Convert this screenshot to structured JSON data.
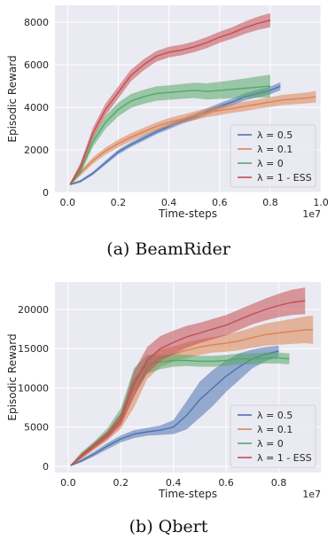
{
  "chart_data": [
    {
      "type": "line",
      "caption": "(a) BeamRider",
      "xlabel": "Time-steps",
      "ylabel": "Episodic Reward",
      "x_scale_label": "1e7",
      "xlim": [
        -0.05,
        1.0
      ],
      "ylim": [
        0,
        8800
      ],
      "xticks": [
        0.0,
        0.2,
        0.4,
        0.6,
        0.8,
        1.0
      ],
      "xtick_labels": [
        "0.0",
        "0.2",
        "0.4",
        "0.6",
        "0.8",
        "1.0"
      ],
      "yticks": [
        0,
        2000,
        4000,
        6000,
        8000
      ],
      "ytick_labels": [
        "0",
        "2000",
        "4000",
        "6000",
        "8000"
      ],
      "grid": true,
      "legend_position": "lower-right",
      "series": [
        {
          "name": "λ = 0.5",
          "color": "#4c72b0",
          "x": [
            0.01,
            0.05,
            0.1,
            0.15,
            0.2,
            0.25,
            0.3,
            0.35,
            0.4,
            0.45,
            0.5,
            0.55,
            0.6,
            0.65,
            0.7,
            0.75,
            0.8,
            0.84
          ],
          "y": [
            380,
            520,
            900,
            1400,
            1900,
            2250,
            2550,
            2850,
            3100,
            3350,
            3550,
            3800,
            4050,
            4250,
            4500,
            4650,
            4800,
            5000
          ],
          "band": [
            50,
            60,
            80,
            100,
            110,
            110,
            120,
            120,
            130,
            130,
            140,
            150,
            150,
            160,
            170,
            170,
            180,
            190
          ]
        },
        {
          "name": "λ = 0.1",
          "color": "#dd8452",
          "x": [
            0.01,
            0.05,
            0.1,
            0.15,
            0.2,
            0.25,
            0.3,
            0.35,
            0.4,
            0.45,
            0.5,
            0.55,
            0.6,
            0.65,
            0.7,
            0.75,
            0.8,
            0.85,
            0.9,
            0.95,
            0.98
          ],
          "y": [
            380,
            900,
            1500,
            1950,
            2300,
            2600,
            2850,
            3100,
            3300,
            3450,
            3600,
            3750,
            3850,
            3950,
            4050,
            4150,
            4250,
            4350,
            4400,
            4450,
            4500
          ],
          "band": [
            60,
            120,
            150,
            170,
            180,
            180,
            190,
            190,
            200,
            200,
            200,
            210,
            210,
            210,
            220,
            220,
            230,
            240,
            250,
            260,
            270
          ]
        },
        {
          "name": "λ = 0",
          "color": "#55a868",
          "x": [
            0.01,
            0.05,
            0.1,
            0.15,
            0.2,
            0.25,
            0.3,
            0.35,
            0.4,
            0.45,
            0.5,
            0.55,
            0.6,
            0.65,
            0.7,
            0.75,
            0.8
          ],
          "y": [
            380,
            1000,
            2400,
            3300,
            3900,
            4300,
            4500,
            4650,
            4700,
            4750,
            4800,
            4750,
            4800,
            4850,
            4900,
            4950,
            5000
          ],
          "band": [
            60,
            150,
            250,
            300,
            320,
            330,
            330,
            340,
            340,
            350,
            360,
            380,
            400,
            430,
            460,
            500,
            540
          ]
        },
        {
          "name": "λ = 1 - ESS",
          "color": "#c44e52",
          "x": [
            0.01,
            0.05,
            0.1,
            0.15,
            0.2,
            0.25,
            0.3,
            0.35,
            0.4,
            0.45,
            0.5,
            0.55,
            0.6,
            0.65,
            0.7,
            0.75,
            0.8
          ],
          "y": [
            380,
            1200,
            2800,
            3900,
            4700,
            5500,
            6000,
            6400,
            6600,
            6700,
            6850,
            7050,
            7300,
            7500,
            7750,
            7950,
            8100
          ],
          "band": [
            60,
            180,
            250,
            280,
            280,
            270,
            260,
            250,
            250,
            250,
            250,
            260,
            260,
            270,
            290,
            310,
            330
          ]
        }
      ]
    },
    {
      "type": "line",
      "caption": "(b) Qbert",
      "xlabel": "Time-steps",
      "ylabel": "Episodic Reward",
      "x_scale_label": "1e7",
      "xlim": [
        -0.05,
        0.96
      ],
      "ylim": [
        -800,
        23500
      ],
      "xticks": [
        0.0,
        0.2,
        0.4,
        0.6,
        0.8
      ],
      "xtick_labels": [
        "0.0",
        "0.2",
        "0.4",
        "0.6",
        "0.8"
      ],
      "yticks": [
        0,
        5000,
        10000,
        15000,
        20000
      ],
      "ytick_labels": [
        "0",
        "5000",
        "10000",
        "15000",
        "20000"
      ],
      "grid": true,
      "legend_position": "lower-right",
      "series": [
        {
          "name": "λ = 0.5",
          "color": "#4c72b0",
          "x": [
            0.01,
            0.05,
            0.1,
            0.15,
            0.2,
            0.25,
            0.3,
            0.35,
            0.4,
            0.45,
            0.5,
            0.55,
            0.6,
            0.65,
            0.7,
            0.75,
            0.8
          ],
          "y": [
            100,
            700,
            1600,
            2600,
            3500,
            4100,
            4400,
            4600,
            5000,
            6500,
            8500,
            10000,
            11500,
            12700,
            13700,
            14300,
            14700
          ],
          "band": [
            80,
            200,
            300,
            400,
            450,
            500,
            500,
            600,
            900,
            1800,
            2300,
            2300,
            2000,
            1700,
            1200,
            900,
            700
          ]
        },
        {
          "name": "λ = 0.1",
          "color": "#dd8452",
          "x": [
            0.01,
            0.05,
            0.1,
            0.15,
            0.2,
            0.25,
            0.3,
            0.35,
            0.4,
            0.45,
            0.5,
            0.55,
            0.6,
            0.65,
            0.7,
            0.75,
            0.8,
            0.85,
            0.9,
            0.93
          ],
          "y": [
            100,
            1200,
            2500,
            3800,
            5500,
            9000,
            12500,
            13800,
            14300,
            14800,
            15200,
            15500,
            15700,
            16000,
            16400,
            16800,
            17000,
            17200,
            17400,
            17400
          ],
          "band": [
            80,
            300,
            400,
            500,
            700,
            1500,
            1400,
            1100,
            1000,
            1000,
            1000,
            1000,
            1100,
            1200,
            1300,
            1400,
            1500,
            1600,
            1700,
            1800
          ]
        },
        {
          "name": "λ = 0",
          "color": "#55a868",
          "x": [
            0.01,
            0.05,
            0.1,
            0.15,
            0.2,
            0.25,
            0.3,
            0.35,
            0.4,
            0.45,
            0.5,
            0.55,
            0.6,
            0.65,
            0.7,
            0.75,
            0.8,
            0.84
          ],
          "y": [
            100,
            1500,
            2800,
            4300,
            6500,
            11000,
            13000,
            13300,
            13500,
            13500,
            13400,
            13400,
            13500,
            13700,
            13700,
            13800,
            13800,
            13700
          ],
          "band": [
            80,
            300,
            400,
            600,
            900,
            1500,
            1200,
            900,
            800,
            700,
            700,
            700,
            700,
            700,
            700,
            700,
            700,
            700
          ]
        },
        {
          "name": "λ = 1 - ESS",
          "color": "#c44e52",
          "x": [
            0.01,
            0.05,
            0.1,
            0.15,
            0.2,
            0.25,
            0.3,
            0.35,
            0.4,
            0.45,
            0.5,
            0.55,
            0.6,
            0.65,
            0.7,
            0.75,
            0.8,
            0.85,
            0.9
          ],
          "y": [
            100,
            1300,
            2700,
            4000,
            6000,
            10500,
            13500,
            15000,
            15800,
            16500,
            17000,
            17500,
            18000,
            18700,
            19400,
            20000,
            20500,
            20900,
            21100
          ],
          "band": [
            80,
            300,
            400,
            500,
            800,
            1600,
            1700,
            1600,
            1500,
            1400,
            1300,
            1300,
            1300,
            1300,
            1300,
            1400,
            1500,
            1600,
            1700
          ]
        }
      ]
    }
  ]
}
